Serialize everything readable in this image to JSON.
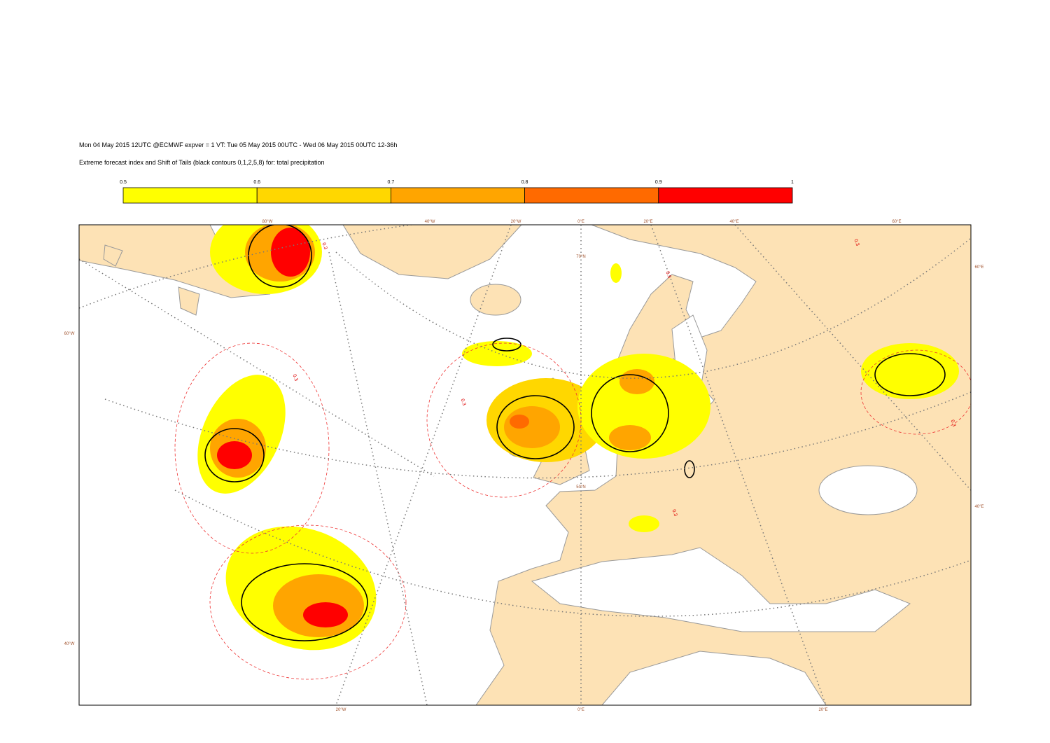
{
  "header": {
    "title": "Mon 04 May 2015 12UTC @ECMWF expver = 1 VT: Tue 05 May 2015 00UTC - Wed 06 May 2015 00UTC  12-36h",
    "subtitle": "Extreme forecast index and Shift of Tails (black contours 0,1,2,5,8) for: total precipitation"
  },
  "legend": {
    "ticks": [
      0.5,
      0.6,
      0.7,
      0.8,
      0.9,
      1
    ],
    "colors": [
      "#ffff00",
      "#ffd700",
      "#ffa500",
      "#ff6a00",
      "#ff0000"
    ]
  },
  "map": {
    "graticule_labels": [
      "80°W",
      "40°W",
      "20°W",
      "0°E",
      "20°E",
      "40°E",
      "60°E",
      "70°N",
      "50°N",
      "60°W",
      "40°W",
      "60°E",
      "40°E",
      "20°W",
      "0°E",
      "20°E"
    ],
    "contour_labels": [
      0.3,
      0.3,
      0.3,
      0.3,
      0.3,
      0.3,
      0.3
    ]
  }
}
